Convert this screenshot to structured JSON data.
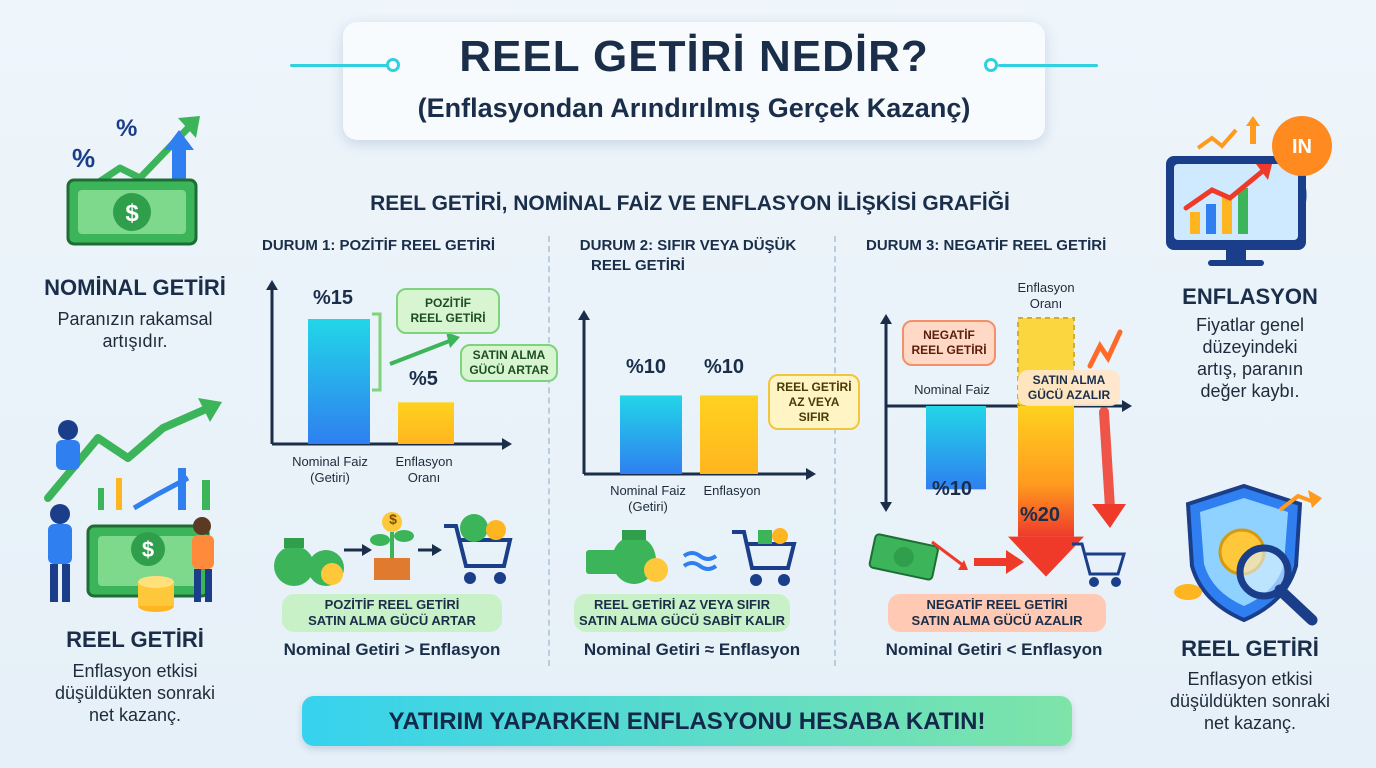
{
  "header": {
    "title": "REEL GETİRİ NEDİR?",
    "subtitle": "(Enflasyondan Arındırılmış Gerçek Kazanç)"
  },
  "chart_title": "REEL GETİRİ, NOMİNAL FAİZ VE ENFLASYON İLİŞKİSİ GRAFİĞİ",
  "left_panel": {
    "nominal": {
      "title": "NOMİNAL GETİRİ",
      "text_line1": "Paranızın rakamsal",
      "text_line2": "artışıdır."
    },
    "real": {
      "title": "REEL GETİRİ",
      "text_line1": "Enflasyon etkisi",
      "text_line2": "düşüldükten sonraki",
      "text_line3": "net kazanç."
    }
  },
  "right_panel": {
    "inflation": {
      "title": "ENFLASYON",
      "text_line1": "Fiyatlar genel",
      "text_line2": "düzeyindeki",
      "text_line3": "artış, paranın",
      "text_line4": "değer kaybı."
    },
    "real": {
      "title": "REEL GETİRİ",
      "text_line1": "Enflasyon etkisi",
      "text_line2": "düşüldükten sonraki",
      "text_line3": "net kazanç."
    }
  },
  "chart_data": [
    {
      "type": "bar",
      "title": "DURUM 1: POZİTİF REEL GETİRİ",
      "categories": [
        "Nominal Faiz (Getiri)",
        "Enflasyon Oranı"
      ],
      "cat1_line1": "Nominal Faiz",
      "cat1_line2": "(Getiri)",
      "cat2_line1": "Enflasyon",
      "cat2_line2": "Oranı",
      "values": [
        15,
        5
      ],
      "value_labels": [
        "%15",
        "%5"
      ],
      "ylim": [
        0,
        18
      ],
      "callout1_line1": "POZİTİF",
      "callout1_line2": "REEL GETİRİ",
      "callout2_line1": "SATIN ALMA",
      "callout2_line2": "GÜCÜ ARTAR",
      "banner_line1": "POZİTİF REEL GETİRİ",
      "banner_line2": "SATIN ALMA GÜCÜ ARTAR",
      "formula": "Nominal Getiri > Enflasyon"
    },
    {
      "type": "bar",
      "title_line1": "DURUM 2: SIFIR VEYA DÜŞÜK",
      "title_line2": "REEL GETİRİ",
      "categories": [
        "Nominal Faiz (Getiri)",
        "Enflasyon"
      ],
      "cat1_line1": "Nominal Faiz",
      "cat1_line2": "(Getiri)",
      "cat2_line1": "Enflasyon",
      "values": [
        10,
        10
      ],
      "value_labels": [
        "%10",
        "%10"
      ],
      "ylim": [
        0,
        14
      ],
      "callout_line1": "REEL GETİRİ",
      "callout_line2": "AZ VEYA",
      "callout_line3": "SIFIR",
      "banner_line1": "REEL GETİRİ AZ VEYA SIFIR",
      "banner_line2": "SATIN ALMA GÜCÜ SABİT KALIR",
      "formula": "Nominal Getiri ≈ Enflasyon"
    },
    {
      "type": "bar",
      "title": "DURUM 3: NEGATİF REEL GETİRİ",
      "categories": [
        "Nominal Faiz",
        "Enflasyon Oranı"
      ],
      "cat1": "Nominal Faiz",
      "cat2_line1": "Enflasyon",
      "cat2_line2": "Oranı",
      "values": [
        10,
        20
      ],
      "value_labels": [
        "%10",
        "%20"
      ],
      "ylim": [
        0,
        24
      ],
      "callout1_line1": "NEGATİF",
      "callout1_line2": "REEL GETİRİ",
      "callout2_line1": "SATIN ALMA",
      "callout2_line2": "GÜCÜ AZALIR",
      "banner_line1": "NEGATİF REEL GETİRİ",
      "banner_line2": "SATIN ALMA GÜCÜ AZALIR",
      "formula": "Nominal Getiri < Enflasyon"
    }
  ],
  "footer": {
    "banner": "YATIRIM YAPARKEN ENFLASYONU HESABA KATIN!"
  },
  "icons": {
    "money_sign": "$",
    "balloon_text": "IN",
    "percent": "%"
  },
  "colors": {
    "cyan_bar": "#22d6e8",
    "blue_bar": "#2f7ff0",
    "yellow_bar": "#ffd21f",
    "orange_bar": "#ff9a1f",
    "red_arrow": "#ef3a2a",
    "green_money": "#3cb55a"
  }
}
